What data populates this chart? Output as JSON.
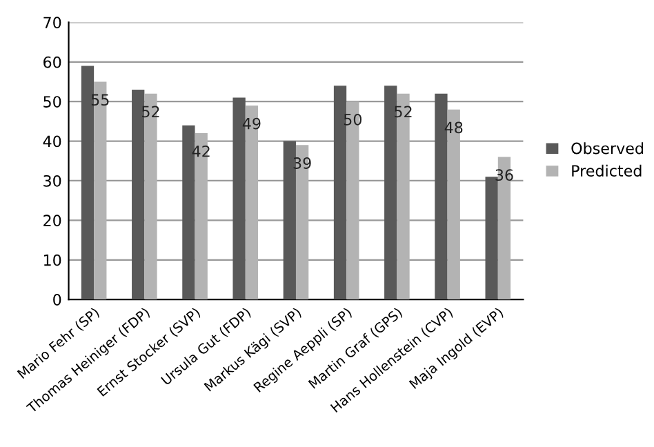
{
  "chart_data": {
    "type": "bar",
    "categories": [
      "Mario Fehr (SP)",
      "Thomas Heiniger (FDP)",
      "Ernst Stocker (SVP)",
      "Ursula Gut (FDP)",
      "Markus Kägi (SVP)",
      "Regine Aeppli (SP)",
      "Martin Graf (GPS)",
      "Hans Hollenstein (CVP)",
      "Maja Ingold (EVP)"
    ],
    "series": [
      {
        "name": "Observed",
        "color": "#595959",
        "values": [
          59,
          53,
          44,
          51,
          40,
          54,
          54,
          52,
          31
        ]
      },
      {
        "name": "Predicted",
        "color": "#b3b3b3",
        "values": [
          55,
          52,
          42,
          49,
          39,
          50,
          52,
          48,
          36
        ],
        "value_labels": [
          "55",
          "52",
          "42",
          "49",
          "39",
          "50",
          "52",
          "48",
          "36"
        ]
      }
    ],
    "ylim": [
      0,
      70
    ],
    "yticks": [
      0,
      10,
      20,
      30,
      40,
      50,
      60,
      70
    ],
    "grid": "y",
    "legend": "right"
  }
}
